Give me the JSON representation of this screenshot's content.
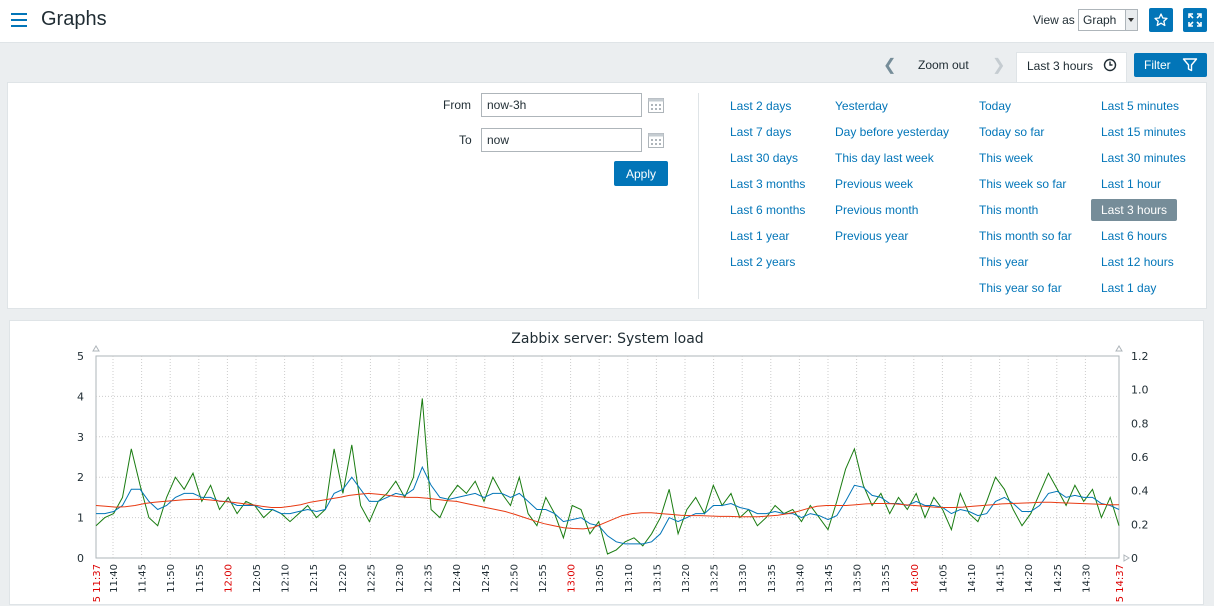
{
  "header": {
    "title": "Graphs",
    "view_as_label": "View as",
    "view_as_value": "Graph",
    "icons": [
      "menu-icon",
      "star-icon",
      "fullscreen-icon"
    ]
  },
  "time_nav": {
    "zoom_out": "Zoom out",
    "active_tab": "Last 3 hours",
    "filter": "Filter"
  },
  "filter": {
    "from_label": "From",
    "from_value": "now-3h",
    "to_label": "To",
    "to_value": "now",
    "apply": "Apply",
    "quick_ranges": [
      [
        "Last 2 days",
        "Last 7 days",
        "Last 30 days",
        "Last 3 months",
        "Last 6 months",
        "Last 1 year",
        "Last 2 years"
      ],
      [
        "Yesterday",
        "Day before yesterday",
        "This day last week",
        "Previous week",
        "Previous month",
        "Previous year"
      ],
      [
        "Today",
        "Today so far",
        "This week",
        "This week so far",
        "This month",
        "This month so far",
        "This year",
        "This year so far"
      ],
      [
        "Last 5 minutes",
        "Last 15 minutes",
        "Last 30 minutes",
        "Last 1 hour",
        "Last 3 hours",
        "Last 6 hours",
        "Last 12 hours",
        "Last 1 day"
      ]
    ],
    "selected_quick": "Last 3 hours"
  },
  "chart_data": {
    "type": "line",
    "title": "Zabbix server: System load",
    "x_labels": [
      "5 11:37",
      "11:40",
      "11:45",
      "11:50",
      "11:55",
      "12:00",
      "12:05",
      "12:10",
      "12:15",
      "12:20",
      "12:25",
      "12:30",
      "12:35",
      "12:40",
      "12:45",
      "12:50",
      "12:55",
      "13:00",
      "13:05",
      "13:10",
      "13:15",
      "13:20",
      "13:25",
      "13:30",
      "13:35",
      "13:40",
      "13:45",
      "13:50",
      "13:55",
      "14:00",
      "14:05",
      "14:10",
      "14:15",
      "14:20",
      "14:25",
      "14:30",
      "5 14:37"
    ],
    "x_label_colors": {
      "highlight": "#dc0000",
      "normal": "#1f2c33"
    },
    "highlighted_labels": [
      "5 11:37",
      "12:00",
      "13:00",
      "14:00",
      "5 14:37"
    ],
    "ylim_left": [
      0,
      5
    ],
    "y_ticks_left": [
      "0",
      "1",
      "2",
      "3",
      "4",
      "5"
    ],
    "ylim_right": [
      0,
      1.2
    ],
    "y_ticks_right": [
      "0",
      "0.2",
      "0.4",
      "0.6",
      "0.8",
      "1.0",
      "1.2"
    ],
    "grid": true,
    "series": [
      {
        "color": "#1a7c11",
        "values": [
          0.8,
          1.0,
          1.1,
          1.5,
          2.7,
          1.8,
          1.0,
          0.8,
          1.5,
          2.0,
          1.7,
          2.1,
          1.4,
          1.8,
          1.2,
          1.5,
          1.1,
          1.4,
          1.3,
          1.0,
          1.2,
          1.1,
          0.9,
          1.1,
          1.3,
          1.0,
          1.2,
          2.7,
          1.6,
          2.8,
          1.3,
          0.9,
          1.4,
          1.6,
          1.9,
          1.5,
          2.0,
          3.95,
          1.2,
          1.0,
          1.5,
          1.8,
          1.6,
          1.9,
          1.4,
          2.0,
          1.6,
          1.3,
          2.0,
          1.1,
          0.8,
          1.5,
          1.1,
          0.5,
          1.3,
          1.2,
          0.6,
          0.9,
          0.1,
          0.2,
          0.4,
          0.5,
          0.3,
          0.6,
          1.0,
          1.7,
          0.6,
          1.2,
          1.5,
          1.1,
          1.8,
          1.3,
          1.6,
          1.0,
          1.2,
          0.8,
          1.0,
          1.3,
          1.1,
          1.2,
          0.9,
          1.3,
          1.0,
          0.7,
          1.4,
          2.2,
          2.7,
          1.8,
          1.3,
          1.6,
          1.1,
          1.5,
          1.2,
          1.6,
          1.0,
          1.5,
          1.2,
          0.7,
          1.6,
          1.1,
          0.9,
          1.4,
          2.0,
          1.7,
          1.2,
          0.8,
          1.1,
          1.6,
          2.1,
          1.7,
          1.3,
          1.8,
          1.4,
          1.7,
          1.0,
          1.5,
          0.8
        ]
      },
      {
        "color": "#0275b8",
        "values": [
          1.1,
          1.1,
          1.15,
          1.3,
          1.7,
          1.7,
          1.4,
          1.2,
          1.3,
          1.5,
          1.6,
          1.6,
          1.5,
          1.5,
          1.4,
          1.4,
          1.3,
          1.3,
          1.3,
          1.2,
          1.2,
          1.1,
          1.1,
          1.15,
          1.2,
          1.15,
          1.2,
          1.6,
          1.7,
          2.0,
          1.7,
          1.4,
          1.4,
          1.5,
          1.6,
          1.55,
          1.7,
          2.25,
          1.8,
          1.5,
          1.45,
          1.5,
          1.55,
          1.6,
          1.5,
          1.6,
          1.6,
          1.5,
          1.6,
          1.4,
          1.2,
          1.2,
          1.1,
          0.9,
          0.95,
          1.0,
          0.85,
          0.8,
          0.55,
          0.4,
          0.35,
          0.35,
          0.35,
          0.4,
          0.6,
          1.0,
          0.9,
          1.0,
          1.1,
          1.1,
          1.3,
          1.3,
          1.35,
          1.25,
          1.2,
          1.1,
          1.1,
          1.15,
          1.1,
          1.1,
          1.0,
          1.1,
          1.05,
          0.95,
          1.05,
          1.4,
          1.8,
          1.75,
          1.55,
          1.5,
          1.35,
          1.35,
          1.3,
          1.4,
          1.3,
          1.3,
          1.25,
          1.1,
          1.2,
          1.15,
          1.05,
          1.1,
          1.4,
          1.5,
          1.35,
          1.15,
          1.15,
          1.3,
          1.6,
          1.65,
          1.5,
          1.55,
          1.5,
          1.5,
          1.35,
          1.3,
          1.2
        ]
      },
      {
        "color": "#e83a12",
        "values": [
          1.3,
          1.28,
          1.26,
          1.27,
          1.3,
          1.35,
          1.38,
          1.4,
          1.42,
          1.44,
          1.45,
          1.45,
          1.43,
          1.4,
          1.38,
          1.35,
          1.32,
          1.28,
          1.25,
          1.25,
          1.28,
          1.32,
          1.38,
          1.42,
          1.46,
          1.5,
          1.55,
          1.58,
          1.6,
          1.58,
          1.55,
          1.52,
          1.5,
          1.5,
          1.48,
          1.45,
          1.42,
          1.4,
          1.35,
          1.3,
          1.25,
          1.2,
          1.15,
          1.08,
          1.0,
          0.92,
          0.85,
          0.8,
          0.75,
          0.73,
          0.72,
          0.75,
          0.85,
          0.95,
          1.05,
          1.1,
          1.12,
          1.12,
          1.1,
          1.08,
          1.06,
          1.05,
          1.05,
          1.04,
          1.03,
          1.03,
          1.02,
          1.02,
          1.02,
          1.04,
          1.06,
          1.1,
          1.15,
          1.22,
          1.28,
          1.3,
          1.3,
          1.3,
          1.32,
          1.34,
          1.35,
          1.35,
          1.34,
          1.32,
          1.3,
          1.28,
          1.26,
          1.25,
          1.25,
          1.26,
          1.28,
          1.3,
          1.32,
          1.34,
          1.35,
          1.36,
          1.37,
          1.38,
          1.38,
          1.37,
          1.36,
          1.35,
          1.34,
          1.33,
          1.32,
          1.32
        ]
      }
    ]
  }
}
